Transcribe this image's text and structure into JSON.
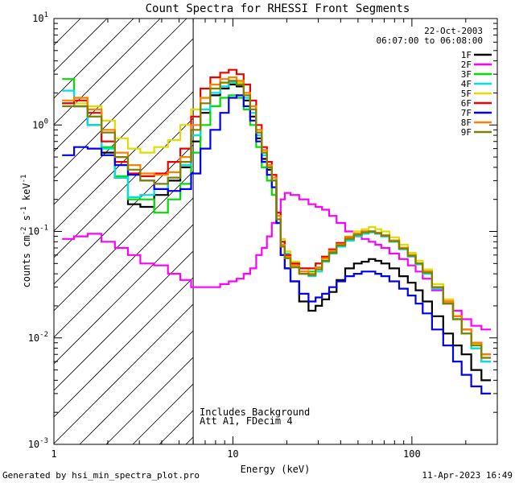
{
  "chart_data": {
    "type": "line",
    "title": "Count Spectra for RHESSI Front Segments",
    "xlabel": "Energy (keV)",
    "ylabel_parts": [
      "counts cm",
      "-2",
      " s",
      "-1",
      " keV",
      "-1"
    ],
    "xscale": "log",
    "yscale": "log",
    "xlim": [
      1,
      300
    ],
    "ylim": [
      0.001,
      10
    ],
    "x_ticks": [
      {
        "value": 1,
        "label": "1"
      },
      {
        "value": 10,
        "label": "10"
      },
      {
        "value": 100,
        "label": "100"
      }
    ],
    "y_ticks": [
      {
        "value": 0.001,
        "base": "10",
        "exp": "-3"
      },
      {
        "value": 0.01,
        "base": "10",
        "exp": "-2"
      },
      {
        "value": 0.1,
        "base": "10",
        "exp": "-1"
      },
      {
        "value": 1,
        "base": "10",
        "exp": "0"
      },
      {
        "value": 10,
        "base": "10",
        "exp": "1"
      }
    ],
    "legend_header": [
      "22-Oct-2003",
      "06:07:00 to 06:08:00"
    ],
    "legend_position": "top-right",
    "hatched_region_keV": [
      1,
      6
    ],
    "cutoff_line_keV": 6,
    "annotations": [
      "Includes Background",
      "Att A1, FDecim  4"
    ],
    "footer_left": "Generated by hsi_min_spectra_plot.pro",
    "footer_right": "11-Apr-2023 16:49",
    "series": [
      {
        "name": "1F",
        "color": "#000000",
        "x": [
          1.2,
          1.4,
          1.7,
          2.0,
          2.4,
          2.8,
          3.3,
          4.0,
          4.7,
          5.5,
          6.2,
          7.0,
          8.0,
          9.0,
          10.0,
          11.0,
          12.0,
          13.0,
          14.0,
          15.0,
          16.0,
          17.0,
          18.0,
          19.0,
          20.0,
          22.0,
          25.0,
          28.0,
          30.0,
          33.0,
          36.0,
          40.0,
          45.0,
          50.0,
          55.0,
          60.0,
          65.0,
          70.0,
          80.0,
          90.0,
          100.0,
          110.0,
          120.0,
          140.0,
          160.0,
          180.0,
          200.0,
          230.0,
          260.0
        ],
        "y": [
          1.6,
          1.5,
          1.0,
          0.55,
          0.32,
          0.18,
          0.17,
          0.22,
          0.3,
          0.4,
          0.7,
          1.3,
          1.9,
          2.2,
          2.4,
          2.3,
          1.7,
          1.2,
          0.75,
          0.48,
          0.38,
          0.3,
          0.12,
          0.06,
          0.045,
          0.034,
          0.022,
          0.018,
          0.02,
          0.023,
          0.027,
          0.035,
          0.045,
          0.05,
          0.052,
          0.055,
          0.053,
          0.05,
          0.045,
          0.038,
          0.033,
          0.028,
          0.022,
          0.016,
          0.011,
          0.0085,
          0.007,
          0.005,
          0.004
        ]
      },
      {
        "name": "2F",
        "color": "#ff00ff",
        "x": [
          1.2,
          1.4,
          1.7,
          2.0,
          2.4,
          2.8,
          3.3,
          4.0,
          4.7,
          5.5,
          6.2,
          7.0,
          8.0,
          9.0,
          10.0,
          11.0,
          12.0,
          13.0,
          14.0,
          15.0,
          16.0,
          17.0,
          18.0,
          19.0,
          20.0,
          22.0,
          25.0,
          28.0,
          30.0,
          33.0,
          36.0,
          40.0,
          45.0,
          50.0,
          55.0,
          60.0,
          65.0,
          70.0,
          80.0,
          90.0,
          100.0,
          110.0,
          120.0,
          140.0,
          160.0,
          180.0,
          200.0,
          230.0,
          260.0
        ],
        "y": [
          0.085,
          0.09,
          0.095,
          0.08,
          0.07,
          0.06,
          0.05,
          0.048,
          0.04,
          0.035,
          0.03,
          0.03,
          0.03,
          0.032,
          0.034,
          0.036,
          0.04,
          0.045,
          0.06,
          0.07,
          0.09,
          0.12,
          0.15,
          0.2,
          0.23,
          0.22,
          0.2,
          0.18,
          0.17,
          0.16,
          0.14,
          0.12,
          0.1,
          0.09,
          0.085,
          0.08,
          0.075,
          0.07,
          0.062,
          0.055,
          0.048,
          0.042,
          0.036,
          0.028,
          0.022,
          0.018,
          0.015,
          0.013,
          0.012
        ]
      },
      {
        "name": "3F",
        "color": "#00dd00",
        "x": [
          1.2,
          1.4,
          1.7,
          2.0,
          2.4,
          2.8,
          3.3,
          4.0,
          4.7,
          5.5,
          6.2,
          7.0,
          8.0,
          9.0,
          10.0,
          11.0,
          12.0,
          13.0,
          14.0,
          15.0,
          16.0,
          17.0,
          18.0,
          19.0,
          20.0,
          22.0,
          25.0,
          28.0,
          30.0,
          33.0,
          36.0,
          40.0,
          45.0,
          50.0,
          55.0,
          60.0,
          65.0,
          70.0,
          80.0,
          90.0,
          100.0,
          110.0,
          120.0,
          140.0,
          160.0,
          180.0,
          200.0,
          230.0,
          260.0
        ],
        "y": [
          2.7,
          1.8,
          1.2,
          0.62,
          0.33,
          0.2,
          0.2,
          0.15,
          0.2,
          0.28,
          0.55,
          1.0,
          1.5,
          1.8,
          1.9,
          1.8,
          1.4,
          1.0,
          0.62,
          0.4,
          0.3,
          0.22,
          0.12,
          0.075,
          0.06,
          0.048,
          0.04,
          0.042,
          0.05,
          0.058,
          0.065,
          0.075,
          0.085,
          0.092,
          0.1,
          0.1,
          0.095,
          0.09,
          0.08,
          0.07,
          0.06,
          0.05,
          0.042,
          0.03,
          0.021,
          0.015,
          0.011,
          0.008,
          0.006
        ]
      },
      {
        "name": "4F",
        "color": "#00e0e0",
        "x": [
          1.2,
          1.4,
          1.7,
          2.0,
          2.4,
          2.8,
          3.3,
          4.0,
          4.7,
          5.5,
          6.2,
          7.0,
          8.0,
          9.0,
          10.0,
          11.0,
          12.0,
          13.0,
          14.0,
          15.0,
          16.0,
          17.0,
          18.0,
          19.0,
          20.0,
          22.0,
          25.0,
          28.0,
          30.0,
          33.0,
          36.0,
          40.0,
          45.0,
          50.0,
          55.0,
          60.0,
          65.0,
          70.0,
          80.0,
          90.0,
          100.0,
          110.0,
          120.0,
          140.0,
          160.0,
          180.0,
          200.0,
          230.0,
          260.0
        ],
        "y": [
          2.1,
          1.5,
          1.0,
          0.6,
          0.32,
          0.21,
          0.22,
          0.25,
          0.32,
          0.42,
          0.8,
          1.4,
          2.0,
          2.3,
          2.5,
          2.4,
          1.8,
          1.3,
          0.8,
          0.52,
          0.4,
          0.3,
          0.14,
          0.08,
          0.062,
          0.05,
          0.042,
          0.038,
          0.042,
          0.052,
          0.062,
          0.072,
          0.082,
          0.09,
          0.095,
          0.098,
          0.095,
          0.09,
          0.08,
          0.068,
          0.058,
          0.049,
          0.04,
          0.029,
          0.021,
          0.015,
          0.011,
          0.008,
          0.006
        ]
      },
      {
        "name": "5F",
        "color": "#dddd00",
        "x": [
          1.2,
          1.4,
          1.7,
          2.0,
          2.4,
          2.8,
          3.3,
          4.0,
          4.7,
          5.5,
          6.2,
          7.0,
          8.0,
          9.0,
          10.0,
          11.0,
          12.0,
          13.0,
          14.0,
          15.0,
          16.0,
          17.0,
          18.0,
          19.0,
          20.0,
          22.0,
          25.0,
          28.0,
          30.0,
          33.0,
          36.0,
          40.0,
          45.0,
          50.0,
          55.0,
          60.0,
          65.0,
          70.0,
          80.0,
          90.0,
          100.0,
          110.0,
          120.0,
          140.0,
          160.0,
          180.0,
          200.0,
          230.0,
          260.0
        ],
        "y": [
          1.6,
          1.6,
          1.5,
          1.1,
          0.75,
          0.6,
          0.55,
          0.62,
          0.72,
          1.0,
          1.4,
          1.8,
          2.2,
          2.5,
          2.6,
          2.5,
          2.0,
          1.5,
          0.9,
          0.58,
          0.42,
          0.32,
          0.15,
          0.085,
          0.065,
          0.052,
          0.045,
          0.04,
          0.045,
          0.055,
          0.066,
          0.078,
          0.09,
          0.1,
          0.105,
          0.11,
          0.105,
          0.1,
          0.088,
          0.075,
          0.063,
          0.053,
          0.044,
          0.032,
          0.023,
          0.016,
          0.012,
          0.0088,
          0.0065
        ]
      },
      {
        "name": "6F",
        "color": "#ee0000",
        "x": [
          1.2,
          1.4,
          1.7,
          2.0,
          2.4,
          2.8,
          3.3,
          4.0,
          4.7,
          5.5,
          6.2,
          7.0,
          8.0,
          9.0,
          10.0,
          11.0,
          12.0,
          13.0,
          14.0,
          15.0,
          16.0,
          17.0,
          18.0,
          19.0,
          20.0,
          22.0,
          25.0,
          28.0,
          30.0,
          33.0,
          36.0,
          40.0,
          45.0,
          50.0,
          55.0,
          60.0,
          65.0,
          70.0,
          80.0,
          90.0,
          100.0,
          110.0,
          120.0,
          140.0,
          160.0,
          180.0,
          200.0,
          230.0,
          260.0
        ],
        "y": [
          1.6,
          1.7,
          1.3,
          0.7,
          0.45,
          0.35,
          0.33,
          0.35,
          0.45,
          0.6,
          1.2,
          2.2,
          2.8,
          3.1,
          3.3,
          3.0,
          2.4,
          1.7,
          1.0,
          0.62,
          0.45,
          0.34,
          0.15,
          0.08,
          0.06,
          0.05,
          0.045,
          0.045,
          0.05,
          0.058,
          0.068,
          0.078,
          0.088,
          0.095,
          0.1,
          0.1,
          0.097,
          0.092,
          0.082,
          0.07,
          0.06,
          0.05,
          0.042,
          0.03,
          0.022,
          0.016,
          0.012,
          0.009,
          0.007
        ]
      },
      {
        "name": "7F",
        "color": "#0000ee",
        "x": [
          1.2,
          1.4,
          1.7,
          2.0,
          2.4,
          2.8,
          3.3,
          4.0,
          4.7,
          5.5,
          6.2,
          7.0,
          8.0,
          9.0,
          10.0,
          11.0,
          12.0,
          13.0,
          14.0,
          15.0,
          16.0,
          17.0,
          18.0,
          19.0,
          20.0,
          22.0,
          25.0,
          28.0,
          30.0,
          33.0,
          36.0,
          40.0,
          45.0,
          50.0,
          55.0,
          60.0,
          65.0,
          70.0,
          80.0,
          90.0,
          100.0,
          110.0,
          120.0,
          140.0,
          160.0,
          180.0,
          200.0,
          230.0,
          260.0
        ],
        "y": [
          0.52,
          0.62,
          0.6,
          0.52,
          0.42,
          0.34,
          0.3,
          0.25,
          0.24,
          0.25,
          0.35,
          0.6,
          0.9,
          1.3,
          1.8,
          1.9,
          1.5,
          1.1,
          0.7,
          0.45,
          0.34,
          0.26,
          0.12,
          0.06,
          0.045,
          0.034,
          0.026,
          0.022,
          0.024,
          0.026,
          0.03,
          0.034,
          0.038,
          0.04,
          0.042,
          0.042,
          0.04,
          0.038,
          0.034,
          0.029,
          0.025,
          0.021,
          0.017,
          0.012,
          0.0085,
          0.006,
          0.0045,
          0.0035,
          0.003
        ]
      },
      {
        "name": "8F",
        "color": "#ff8000",
        "x": [
          1.2,
          1.4,
          1.7,
          2.0,
          2.4,
          2.8,
          3.3,
          4.0,
          4.7,
          5.5,
          6.2,
          7.0,
          8.0,
          9.0,
          10.0,
          11.0,
          12.0,
          13.0,
          14.0,
          15.0,
          16.0,
          17.0,
          18.0,
          19.0,
          20.0,
          22.0,
          25.0,
          28.0,
          30.0,
          33.0,
          36.0,
          40.0,
          45.0,
          50.0,
          55.0,
          60.0,
          65.0,
          70.0,
          80.0,
          90.0,
          100.0,
          110.0,
          120.0,
          140.0,
          160.0,
          180.0,
          200.0,
          230.0,
          260.0
        ],
        "y": [
          1.7,
          1.8,
          1.4,
          0.9,
          0.55,
          0.42,
          0.35,
          0.34,
          0.36,
          0.5,
          1.0,
          1.8,
          2.4,
          2.7,
          2.8,
          2.6,
          2.0,
          1.5,
          0.9,
          0.58,
          0.42,
          0.32,
          0.14,
          0.075,
          0.058,
          0.048,
          0.042,
          0.04,
          0.046,
          0.056,
          0.066,
          0.076,
          0.087,
          0.095,
          0.1,
          0.1,
          0.097,
          0.092,
          0.082,
          0.07,
          0.06,
          0.05,
          0.042,
          0.03,
          0.022,
          0.016,
          0.012,
          0.009,
          0.007
        ]
      },
      {
        "name": "9F",
        "color": "#808000",
        "x": [
          1.2,
          1.4,
          1.7,
          2.0,
          2.4,
          2.8,
          3.3,
          4.0,
          4.7,
          5.5,
          6.2,
          7.0,
          8.0,
          9.0,
          10.0,
          11.0,
          12.0,
          13.0,
          14.0,
          15.0,
          16.0,
          17.0,
          18.0,
          19.0,
          20.0,
          22.0,
          25.0,
          28.0,
          30.0,
          33.0,
          36.0,
          40.0,
          45.0,
          50.0,
          55.0,
          60.0,
          65.0,
          70.0,
          80.0,
          90.0,
          100.0,
          110.0,
          120.0,
          140.0,
          160.0,
          180.0,
          200.0,
          230.0,
          260.0
        ],
        "y": [
          1.5,
          1.5,
          1.2,
          0.85,
          0.5,
          0.38,
          0.3,
          0.28,
          0.32,
          0.45,
          0.9,
          1.6,
          2.2,
          2.5,
          2.6,
          2.4,
          1.9,
          1.4,
          0.85,
          0.55,
          0.4,
          0.3,
          0.13,
          0.072,
          0.056,
          0.046,
          0.04,
          0.039,
          0.044,
          0.053,
          0.063,
          0.074,
          0.085,
          0.093,
          0.098,
          0.1,
          0.096,
          0.091,
          0.081,
          0.069,
          0.059,
          0.05,
          0.041,
          0.03,
          0.021,
          0.015,
          0.011,
          0.0085,
          0.0065
        ]
      }
    ]
  }
}
